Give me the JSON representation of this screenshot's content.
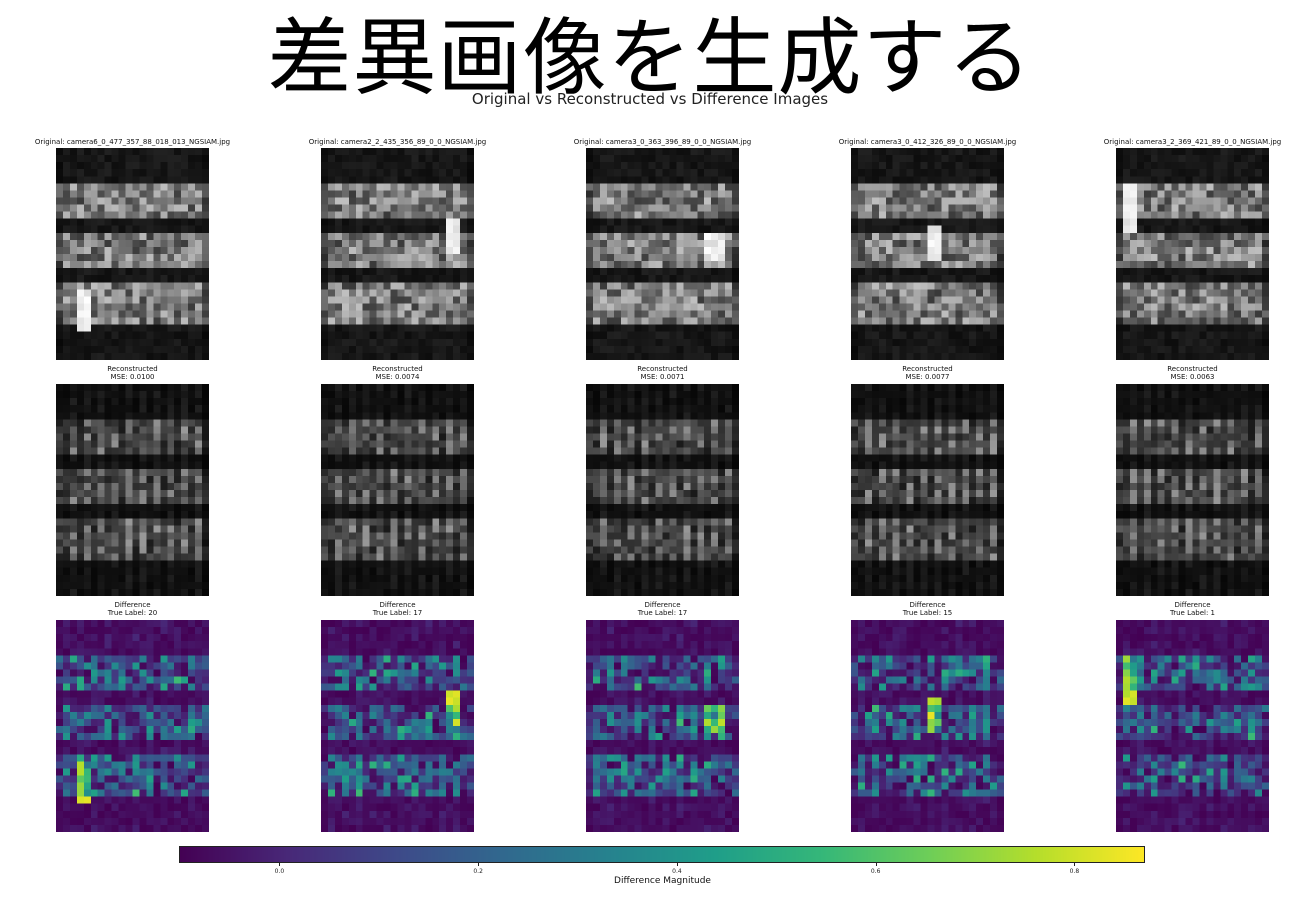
{
  "heading": "差異画像を生成する",
  "chart_data": {
    "type": "heatmap",
    "title": "Original vs Reconstructed vs Difference Images",
    "panels": [
      {
        "original_title": "Original: camera6_0_477_357_88_018_013_NGSIAM.jpg",
        "reconstructed_title": "Reconstructed",
        "mse": "MSE: 0.0100",
        "difference_title": "Difference",
        "true_label": "True Label: 20"
      },
      {
        "original_title": "Original: camera2_2_435_356_89_0_0_NGSIAM.jpg",
        "reconstructed_title": "Reconstructed",
        "mse": "MSE: 0.0074",
        "difference_title": "Difference",
        "true_label": "True Label: 17"
      },
      {
        "original_title": "Original: camera3_0_363_396_89_0_0_NGSIAM.jpg",
        "reconstructed_title": "Reconstructed",
        "mse": "MSE: 0.0071",
        "difference_title": "Difference",
        "true_label": "True Label: 17"
      },
      {
        "original_title": "Original: camera3_0_412_326_89_0_0_NGSIAM.jpg",
        "reconstructed_title": "Reconstructed",
        "mse": "MSE: 0.0077",
        "difference_title": "Difference",
        "true_label": "True Label: 15"
      },
      {
        "original_title": "Original: camera3_2_369_421_89_0_0_NGSIAM.jpg",
        "reconstructed_title": "Reconstructed",
        "mse": "MSE: 0.0063",
        "difference_title": "Difference",
        "true_label": "True Label: 1"
      }
    ],
    "colorbar": {
      "label": "Difference Magnitude",
      "colormap": "viridis",
      "range": [
        -0.1,
        0.87
      ],
      "ticks": [
        "0.0",
        "0.2",
        "0.4",
        "0.6",
        "0.8"
      ]
    }
  }
}
